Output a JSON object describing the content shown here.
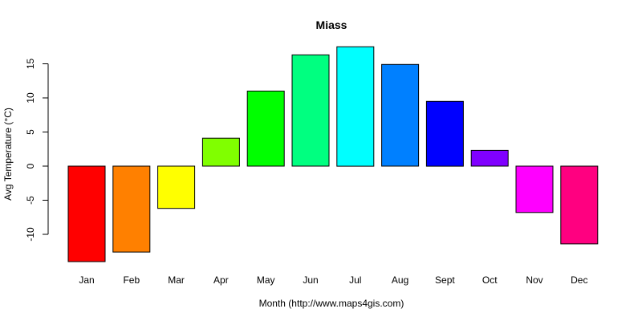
{
  "chart_data": {
    "type": "bar",
    "title": "Miass",
    "xlabel": "Month (http://www.maps4gis.com)",
    "ylabel": "Avg Temperature (°C)",
    "categories": [
      "Jan",
      "Feb",
      "Mar",
      "Apr",
      "May",
      "Jun",
      "Jul",
      "Aug",
      "Sept",
      "Oct",
      "Nov",
      "Dec"
    ],
    "values": [
      -14.0,
      -12.6,
      -6.2,
      4.1,
      11.0,
      16.3,
      17.5,
      14.9,
      9.5,
      2.3,
      -6.8,
      -11.4
    ],
    "colors": [
      "#ff0000",
      "#ff8000",
      "#ffff00",
      "#80ff00",
      "#00ff00",
      "#00ff80",
      "#00ffff",
      "#0080ff",
      "#0000ff",
      "#8000ff",
      "#ff00ff",
      "#ff0080"
    ],
    "yticks": [
      -10,
      -5,
      0,
      5,
      10,
      15
    ],
    "ylim": [
      -14.5,
      17.9
    ],
    "grid": false,
    "legend": false
  }
}
